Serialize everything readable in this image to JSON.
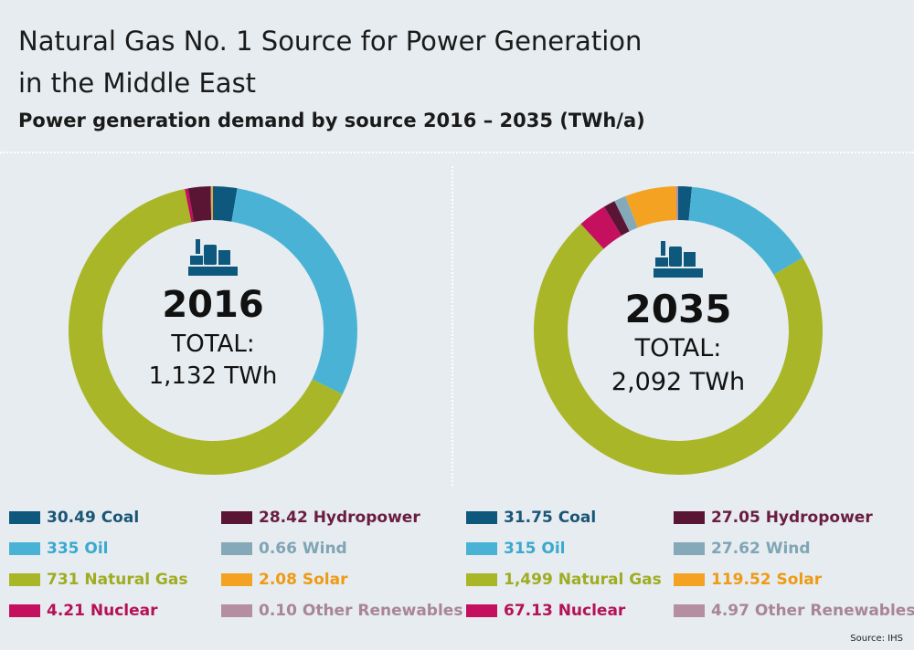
{
  "title_line1": "Natural Gas No. 1 Source for Power Generation",
  "title_line2": "in the Middle East",
  "subtitle": "Power generation demand by source 2016 – 2035 (TWh/a)",
  "source": "Source: IHS",
  "colors": {
    "Coal": "#0e587e",
    "Oil": "#4ab3d5",
    "Natural Gas": "#a9b628",
    "Nuclear": "#c4105f",
    "Hydropower": "#5a1535",
    "Wind": "#85a9b9",
    "Solar": "#f3a321",
    "Other Renewables": "#b58ea2"
  },
  "legend_text_colors": {
    "Coal": "#1a5677",
    "Oil": "#3aa9d0",
    "Natural Gas": "#a0ac22",
    "Nuclear": "#b51157",
    "Hydropower": "#6a1d3f",
    "Wind": "#7fa5b6",
    "Solar": "#ef9a14",
    "Other Renewables": "#a98598"
  },
  "icon": "power-plant-icon",
  "chart_data": [
    {
      "type": "pie",
      "donut": true,
      "year": "2016",
      "total_label": "TOTAL:",
      "total_value": "1,132 TWh",
      "series": [
        {
          "name": "Coal",
          "value": 30.49,
          "label": "30.49 Coal"
        },
        {
          "name": "Oil",
          "value": 335,
          "label": "335 Oil"
        },
        {
          "name": "Natural Gas",
          "value": 731,
          "label": "731 Natural Gas"
        },
        {
          "name": "Nuclear",
          "value": 4.21,
          "label": "4.21 Nuclear"
        },
        {
          "name": "Hydropower",
          "value": 28.42,
          "label": "28.42 Hydropower"
        },
        {
          "name": "Wind",
          "value": 0.66,
          "label": "0.66 Wind"
        },
        {
          "name": "Solar",
          "value": 2.08,
          "label": "2.08 Solar"
        },
        {
          "name": "Other Renewables",
          "value": 0.1,
          "label": "0.10 Other Renewables"
        }
      ]
    },
    {
      "type": "pie",
      "donut": true,
      "year": "2035",
      "total_label": "TOTAL:",
      "total_value": "2,092 TWh",
      "series": [
        {
          "name": "Coal",
          "value": 31.75,
          "label": "31.75 Coal"
        },
        {
          "name": "Oil",
          "value": 315,
          "label": "315 Oil"
        },
        {
          "name": "Natural Gas",
          "value": 1499,
          "label": "1,499 Natural Gas"
        },
        {
          "name": "Nuclear",
          "value": 67.13,
          "label": "67.13 Nuclear"
        },
        {
          "name": "Hydropower",
          "value": 27.05,
          "label": "27.05 Hydropower"
        },
        {
          "name": "Wind",
          "value": 27.62,
          "label": "27.62 Wind"
        },
        {
          "name": "Solar",
          "value": 119.52,
          "label": "119.52 Solar"
        },
        {
          "name": "Other Renewables",
          "value": 4.97,
          "label": "4.97 Other Renewables"
        }
      ]
    }
  ]
}
